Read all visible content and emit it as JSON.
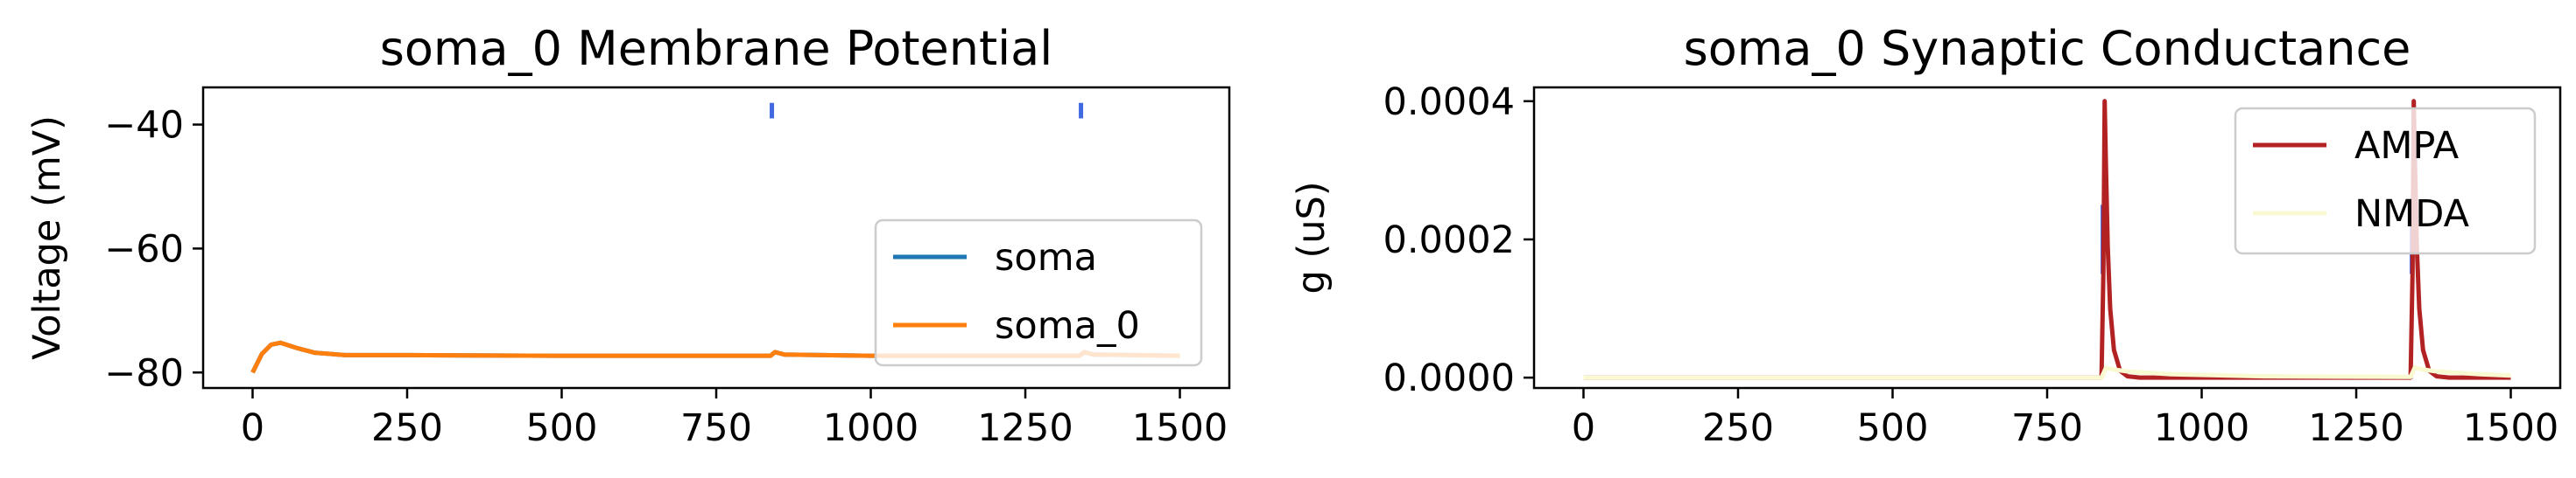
{
  "chart_data": [
    {
      "type": "line",
      "title": "soma_0 Membrane Potential",
      "xlabel": "",
      "ylabel": "Voltage (mV)",
      "xlim": [
        -80,
        1580
      ],
      "ylim": [
        -82.5,
        -34
      ],
      "xticks": [
        0,
        250,
        500,
        750,
        1000,
        1250,
        1500
      ],
      "xtick_labels": [
        "0",
        "250",
        "500",
        "750",
        "1000",
        "1250",
        "1500"
      ],
      "yticks": [
        -40,
        -60,
        -80
      ],
      "ytick_labels": [
        "−40",
        "−60",
        "−80"
      ],
      "grid": false,
      "legend": {
        "position": "lower-right",
        "entries": [
          "soma",
          "soma_0"
        ]
      },
      "series": [
        {
          "name": "soma",
          "color": "#1f77b4",
          "x": [
            0,
            15,
            30,
            45,
            70,
            100,
            150,
            250,
            500,
            750,
            838,
            845,
            860,
            1000,
            1250,
            1338,
            1345,
            1360,
            1500
          ],
          "y": [
            -80,
            -77,
            -75.5,
            -75.2,
            -76,
            -76.8,
            -77.2,
            -77.2,
            -77.3,
            -77.3,
            -77.3,
            -76.7,
            -77.1,
            -77.3,
            -77.3,
            -77.3,
            -76.7,
            -77.1,
            -77.3
          ]
        },
        {
          "name": "soma_0",
          "color": "#ff7f0e",
          "x": [
            0,
            15,
            30,
            45,
            70,
            100,
            150,
            250,
            500,
            750,
            838,
            845,
            860,
            1000,
            1250,
            1338,
            1345,
            1360,
            1500
          ],
          "y": [
            -80,
            -77,
            -75.5,
            -75.2,
            -76,
            -76.8,
            -77.2,
            -77.2,
            -77.3,
            -77.3,
            -77.3,
            -76.7,
            -77.1,
            -77.3,
            -77.3,
            -77.3,
            -76.7,
            -77.1,
            -77.3
          ]
        }
      ],
      "event_markers": {
        "color": "#4169e1",
        "x": [
          840,
          1340
        ],
        "y_range": [
          -39,
          -36.5
        ]
      }
    },
    {
      "type": "line",
      "title": "soma_0 Synaptic Conductance",
      "xlabel": "",
      "ylabel": "g (uS)",
      "xlim": [
        -80,
        1580
      ],
      "ylim": [
        -1.5e-05,
        0.00042
      ],
      "xticks": [
        0,
        250,
        500,
        750,
        1000,
        1250,
        1500
      ],
      "xtick_labels": [
        "0",
        "250",
        "500",
        "750",
        "1000",
        "1250",
        "1500"
      ],
      "yticks": [
        0.0004,
        0.0002,
        0.0
      ],
      "ytick_labels": [
        "0.0004",
        "0.0002",
        "0.0000"
      ],
      "grid": false,
      "legend": {
        "position": "upper-right",
        "entries": [
          "AMPA",
          "NMDA"
        ]
      },
      "series": [
        {
          "name": "AMPA",
          "color": "#b22222",
          "x": [
            0,
            838,
            841,
            843,
            845,
            848,
            852,
            858,
            868,
            880,
            900,
            1338,
            1341,
            1343,
            1345,
            1348,
            1352,
            1358,
            1368,
            1380,
            1400,
            1500
          ],
          "y": [
            0,
            0,
            0.00015,
            0.0004,
            0.00031,
            0.00019,
            0.0001,
            4e-05,
            1e-05,
            2e-06,
            0,
            0,
            0.00015,
            0.0004,
            0.00031,
            0.00019,
            0.0001,
            4e-05,
            1e-05,
            2e-06,
            0,
            0
          ]
        },
        {
          "name": "NMDA",
          "color": "#fafad2",
          "x": [
            0,
            838,
            845,
            855,
            880,
            950,
            1100,
            1338,
            1345,
            1355,
            1380,
            1450,
            1500
          ],
          "y": [
            0,
            0,
            1.4e-05,
            1.2e-05,
            9e-06,
            5e-06,
            2e-06,
            1e-06,
            1.5e-05,
            1.2e-05,
            9e-06,
            5e-06,
            3e-06
          ]
        }
      ],
      "event_markers": {
        "color": "#4169e1",
        "x": [
          840,
          1340
        ],
        "y_range": [
          0.00015,
          0.00025
        ]
      }
    }
  ]
}
